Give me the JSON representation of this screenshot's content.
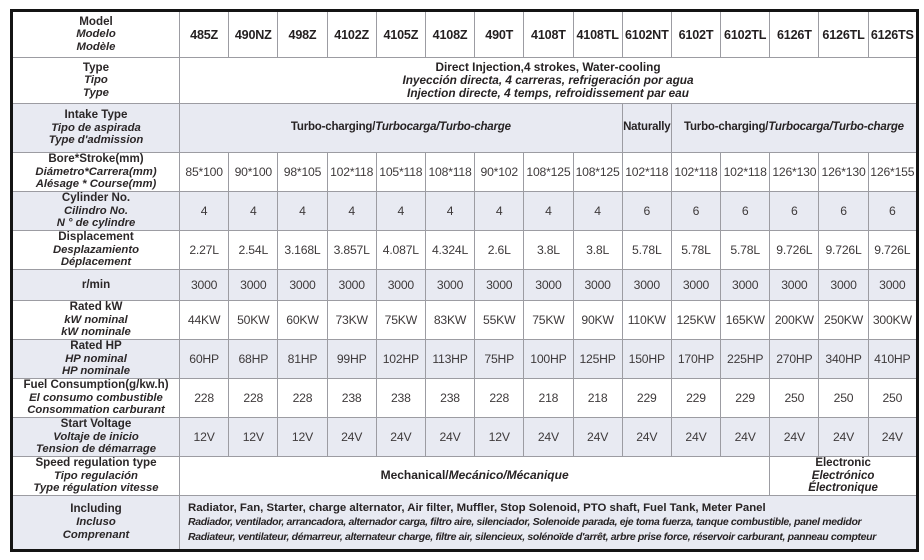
{
  "table": {
    "model_row": {
      "label_lines": [
        "Model",
        "Modelo",
        "Modèle"
      ],
      "models": [
        "485Z",
        "490NZ",
        "498Z",
        "4102Z",
        "4105Z",
        "4108Z",
        "490T",
        "4108T",
        "4108TL",
        "6102NT",
        "6102T",
        "6102TL",
        "6126T",
        "6126TL",
        "6126TS"
      ]
    },
    "rows": [
      {
        "key": "type",
        "shaded": false,
        "label": [
          "Type",
          "Tipo",
          "Type"
        ],
        "cells": [
          {
            "colspan": 15,
            "lines": [
              [
                {
                  "t": "Direct Injection,4 strokes, Water-cooling",
                  "i": 0
                }
              ],
              [
                {
                  "t": "Inyección directa, 4 carreras, refrigeración por agua",
                  "i": 1
                }
              ],
              [
                {
                  "t": "Injection directe, 4 temps, refroidissement par eau",
                  "i": 1
                }
              ]
            ]
          }
        ]
      },
      {
        "key": "intake",
        "shaded": true,
        "label": [
          "Intake Type",
          "Tipo de aspirada",
          "Type d'admission"
        ],
        "cells": [
          {
            "colspan": 9,
            "lines": [
              [
                {
                  "t": "Turbo-charging/",
                  "i": 0
                },
                {
                  "t": "Turbocarga/Turbo-charge",
                  "i": 1
                }
              ]
            ]
          },
          {
            "colspan": 1,
            "lines": [
              [
                {
                  "t": "Naturally",
                  "i": 0
                }
              ]
            ]
          },
          {
            "colspan": 5,
            "lines": [
              [
                {
                  "t": "Turbo-charging/",
                  "i": 0
                },
                {
                  "t": "Turbocarga/Turbo-charge",
                  "i": 1
                }
              ]
            ]
          }
        ]
      },
      {
        "key": "bore",
        "shaded": false,
        "label": [
          "Bore*Stroke(mm)",
          "Diámetro*Carrera(mm)",
          "Alésage * Course(mm)"
        ],
        "values": [
          "85*100",
          "90*100",
          "98*105",
          "102*118",
          "105*118",
          "108*118",
          "90*102",
          "108*125",
          "108*125",
          "102*118",
          "102*118",
          "102*118",
          "126*130",
          "126*130",
          "126*155"
        ]
      },
      {
        "key": "cylinder",
        "shaded": true,
        "label": [
          "Cylinder No.",
          "Cilindro No.",
          "N ° de cylindre"
        ],
        "values": [
          "4",
          "4",
          "4",
          "4",
          "4",
          "4",
          "4",
          "4",
          "4",
          "6",
          "6",
          "6",
          "6",
          "6",
          "6"
        ]
      },
      {
        "key": "displacement",
        "shaded": false,
        "label": [
          "Displacement",
          "Desplazamiento",
          "Déplacement"
        ],
        "values": [
          "2.27L",
          "2.54L",
          "3.168L",
          "3.857L",
          "4.087L",
          "4.324L",
          "2.6L",
          "3.8L",
          "3.8L",
          "5.78L",
          "5.78L",
          "5.78L",
          "9.726L",
          "9.726L",
          "9.726L"
        ]
      },
      {
        "key": "rmin",
        "shaded": true,
        "label": [
          "r/min"
        ],
        "values": [
          "3000",
          "3000",
          "3000",
          "3000",
          "3000",
          "3000",
          "3000",
          "3000",
          "3000",
          "3000",
          "3000",
          "3000",
          "3000",
          "3000",
          "3000"
        ]
      },
      {
        "key": "kw",
        "shaded": false,
        "label": [
          "Rated kW",
          "kW nominal",
          "kW nominale"
        ],
        "values": [
          "44KW",
          "50KW",
          "60KW",
          "73KW",
          "75KW",
          "83KW",
          "55KW",
          "75KW",
          "90KW",
          "110KW",
          "125KW",
          "165KW",
          "200KW",
          "250KW",
          "300KW"
        ]
      },
      {
        "key": "hp",
        "shaded": true,
        "label": [
          "Rated HP",
          "HP nominal",
          "HP nominale"
        ],
        "values": [
          "60HP",
          "68HP",
          "81HP",
          "99HP",
          "102HP",
          "113HP",
          "75HP",
          "100HP",
          "125HP",
          "150HP",
          "170HP",
          "225HP",
          "270HP",
          "340HP",
          "410HP"
        ]
      },
      {
        "key": "fuel",
        "shaded": false,
        "label": [
          "Fuel Consumption(g/kw.h)",
          "El consumo combustible",
          "Consommation carburant"
        ],
        "values": [
          "228",
          "228",
          "228",
          "238",
          "238",
          "238",
          "228",
          "218",
          "218",
          "229",
          "229",
          "229",
          "250",
          "250",
          "250"
        ]
      },
      {
        "key": "voltage",
        "shaded": true,
        "label": [
          "Start Voltage",
          "Voltaje de inicio",
          "Tension de démarrage"
        ],
        "values": [
          "12V",
          "12V",
          "12V",
          "24V",
          "24V",
          "24V",
          "12V",
          "24V",
          "24V",
          "24V",
          "24V",
          "24V",
          "24V",
          "24V",
          "24V"
        ]
      },
      {
        "key": "speed",
        "shaded": false,
        "label": [
          "Speed regulation type",
          "Tipo regulación",
          "Type régulation vitesse"
        ],
        "cells": [
          {
            "colspan": 12,
            "lines": [
              [
                {
                  "t": "Mechanical/",
                  "i": 0
                },
                {
                  "t": "Mecánico/Mécanique",
                  "i": 1
                }
              ]
            ]
          },
          {
            "colspan": 3,
            "elec": true,
            "lines": [
              [
                {
                  "t": "Electronic",
                  "i": 0
                }
              ],
              [
                {
                  "t": "Electrónico",
                  "i": 1
                }
              ],
              [
                {
                  "t": "Électronique",
                  "i": 1
                }
              ]
            ]
          }
        ]
      },
      {
        "key": "including",
        "shaded": true,
        "label": [
          "Including",
          "Incluso",
          "Comprenant"
        ],
        "cells": [
          {
            "colspan": 15,
            "including": true,
            "lines": [
              [
                {
                  "t": "Radiator, Fan, Starter, charge alternator, Air filter, Muffler, Stop Solenoid, PTO shaft, Fuel Tank, Meter Panel",
                  "i": 0
                }
              ],
              [
                {
                  "t": "Radiador, ventilador, arrancadora, alternador carga, filtro aire, silenciador, Solenoide parada, eje toma fuerza, tanque combustible, panel medidor",
                  "i": 1
                }
              ],
              [
                {
                  "t": "Radiateur, ventilateur, démarreur, alternateur charge, filtre air, silencieux, solénoïde d'arrêt, arbre prise force, réservoir carburant, panneau compteur",
                  "i": 1
                }
              ]
            ]
          }
        ]
      }
    ]
  }
}
